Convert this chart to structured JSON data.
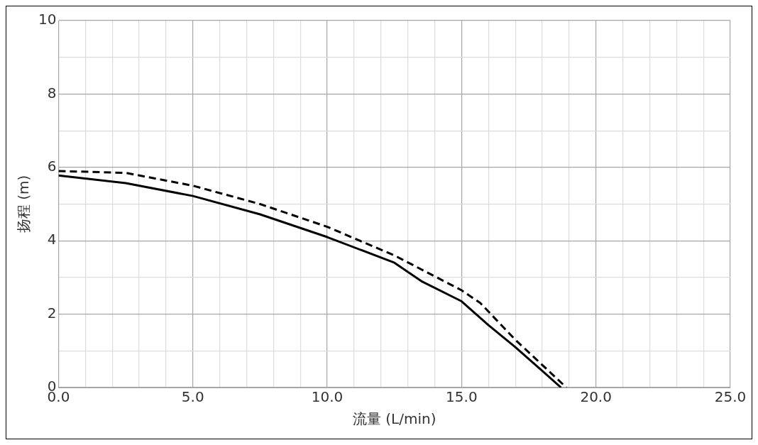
{
  "chart_data": {
    "type": "line",
    "xlabel": "流量 (L/min)",
    "ylabel": "扬程 (m)",
    "xlim": [
      0,
      25
    ],
    "ylim": [
      0,
      10
    ],
    "xticks": [
      {
        "value": 0,
        "label": "0.0"
      },
      {
        "value": 1,
        "label": null
      },
      {
        "value": 2,
        "label": null
      },
      {
        "value": 3,
        "label": null
      },
      {
        "value": 4,
        "label": null
      },
      {
        "value": 5,
        "label": "5.0"
      },
      {
        "value": 6,
        "label": null
      },
      {
        "value": 7,
        "label": null
      },
      {
        "value": 8,
        "label": null
      },
      {
        "value": 9,
        "label": null
      },
      {
        "value": 10,
        "label": "10.0"
      },
      {
        "value": 11,
        "label": null
      },
      {
        "value": 12,
        "label": null
      },
      {
        "value": 13,
        "label": null
      },
      {
        "value": 14,
        "label": null
      },
      {
        "value": 15,
        "label": "15.0"
      },
      {
        "value": 16,
        "label": null
      },
      {
        "value": 17,
        "label": null
      },
      {
        "value": 18,
        "label": null
      },
      {
        "value": 19,
        "label": null
      },
      {
        "value": 20,
        "label": "20.0"
      },
      {
        "value": 21,
        "label": null
      },
      {
        "value": 22,
        "label": null
      },
      {
        "value": 23,
        "label": null
      },
      {
        "value": 24,
        "label": null
      },
      {
        "value": 25,
        "label": "25.0"
      }
    ],
    "yticks": [
      0,
      {
        "value": 1,
        "label": null
      },
      2,
      {
        "value": 3,
        "label": null
      },
      4,
      {
        "value": 5,
        "label": null
      },
      6,
      {
        "value": 7,
        "label": null
      },
      8,
      {
        "value": 9,
        "label": null
      },
      10
    ],
    "grid": true,
    "marker": "none",
    "series": [
      {
        "color": "#000000",
        "line_style": "solid",
        "x": [
          0,
          2.5,
          5,
          7.5,
          10,
          12.5,
          13.5,
          15,
          16,
          17,
          18.7
        ],
        "values": [
          5.78,
          5.57,
          5.22,
          4.72,
          4.1,
          3.4,
          2.9,
          2.35,
          1.7,
          1.1,
          0
        ]
      },
      {
        "color": "#000000",
        "line_style": "dashed",
        "x": [
          0,
          2.5,
          5,
          7.5,
          10,
          12.5,
          15,
          15.7,
          17,
          18.9
        ],
        "values": [
          5.9,
          5.85,
          5.5,
          5.0,
          4.38,
          3.6,
          2.65,
          2.3,
          1.3,
          0
        ]
      }
    ]
  }
}
